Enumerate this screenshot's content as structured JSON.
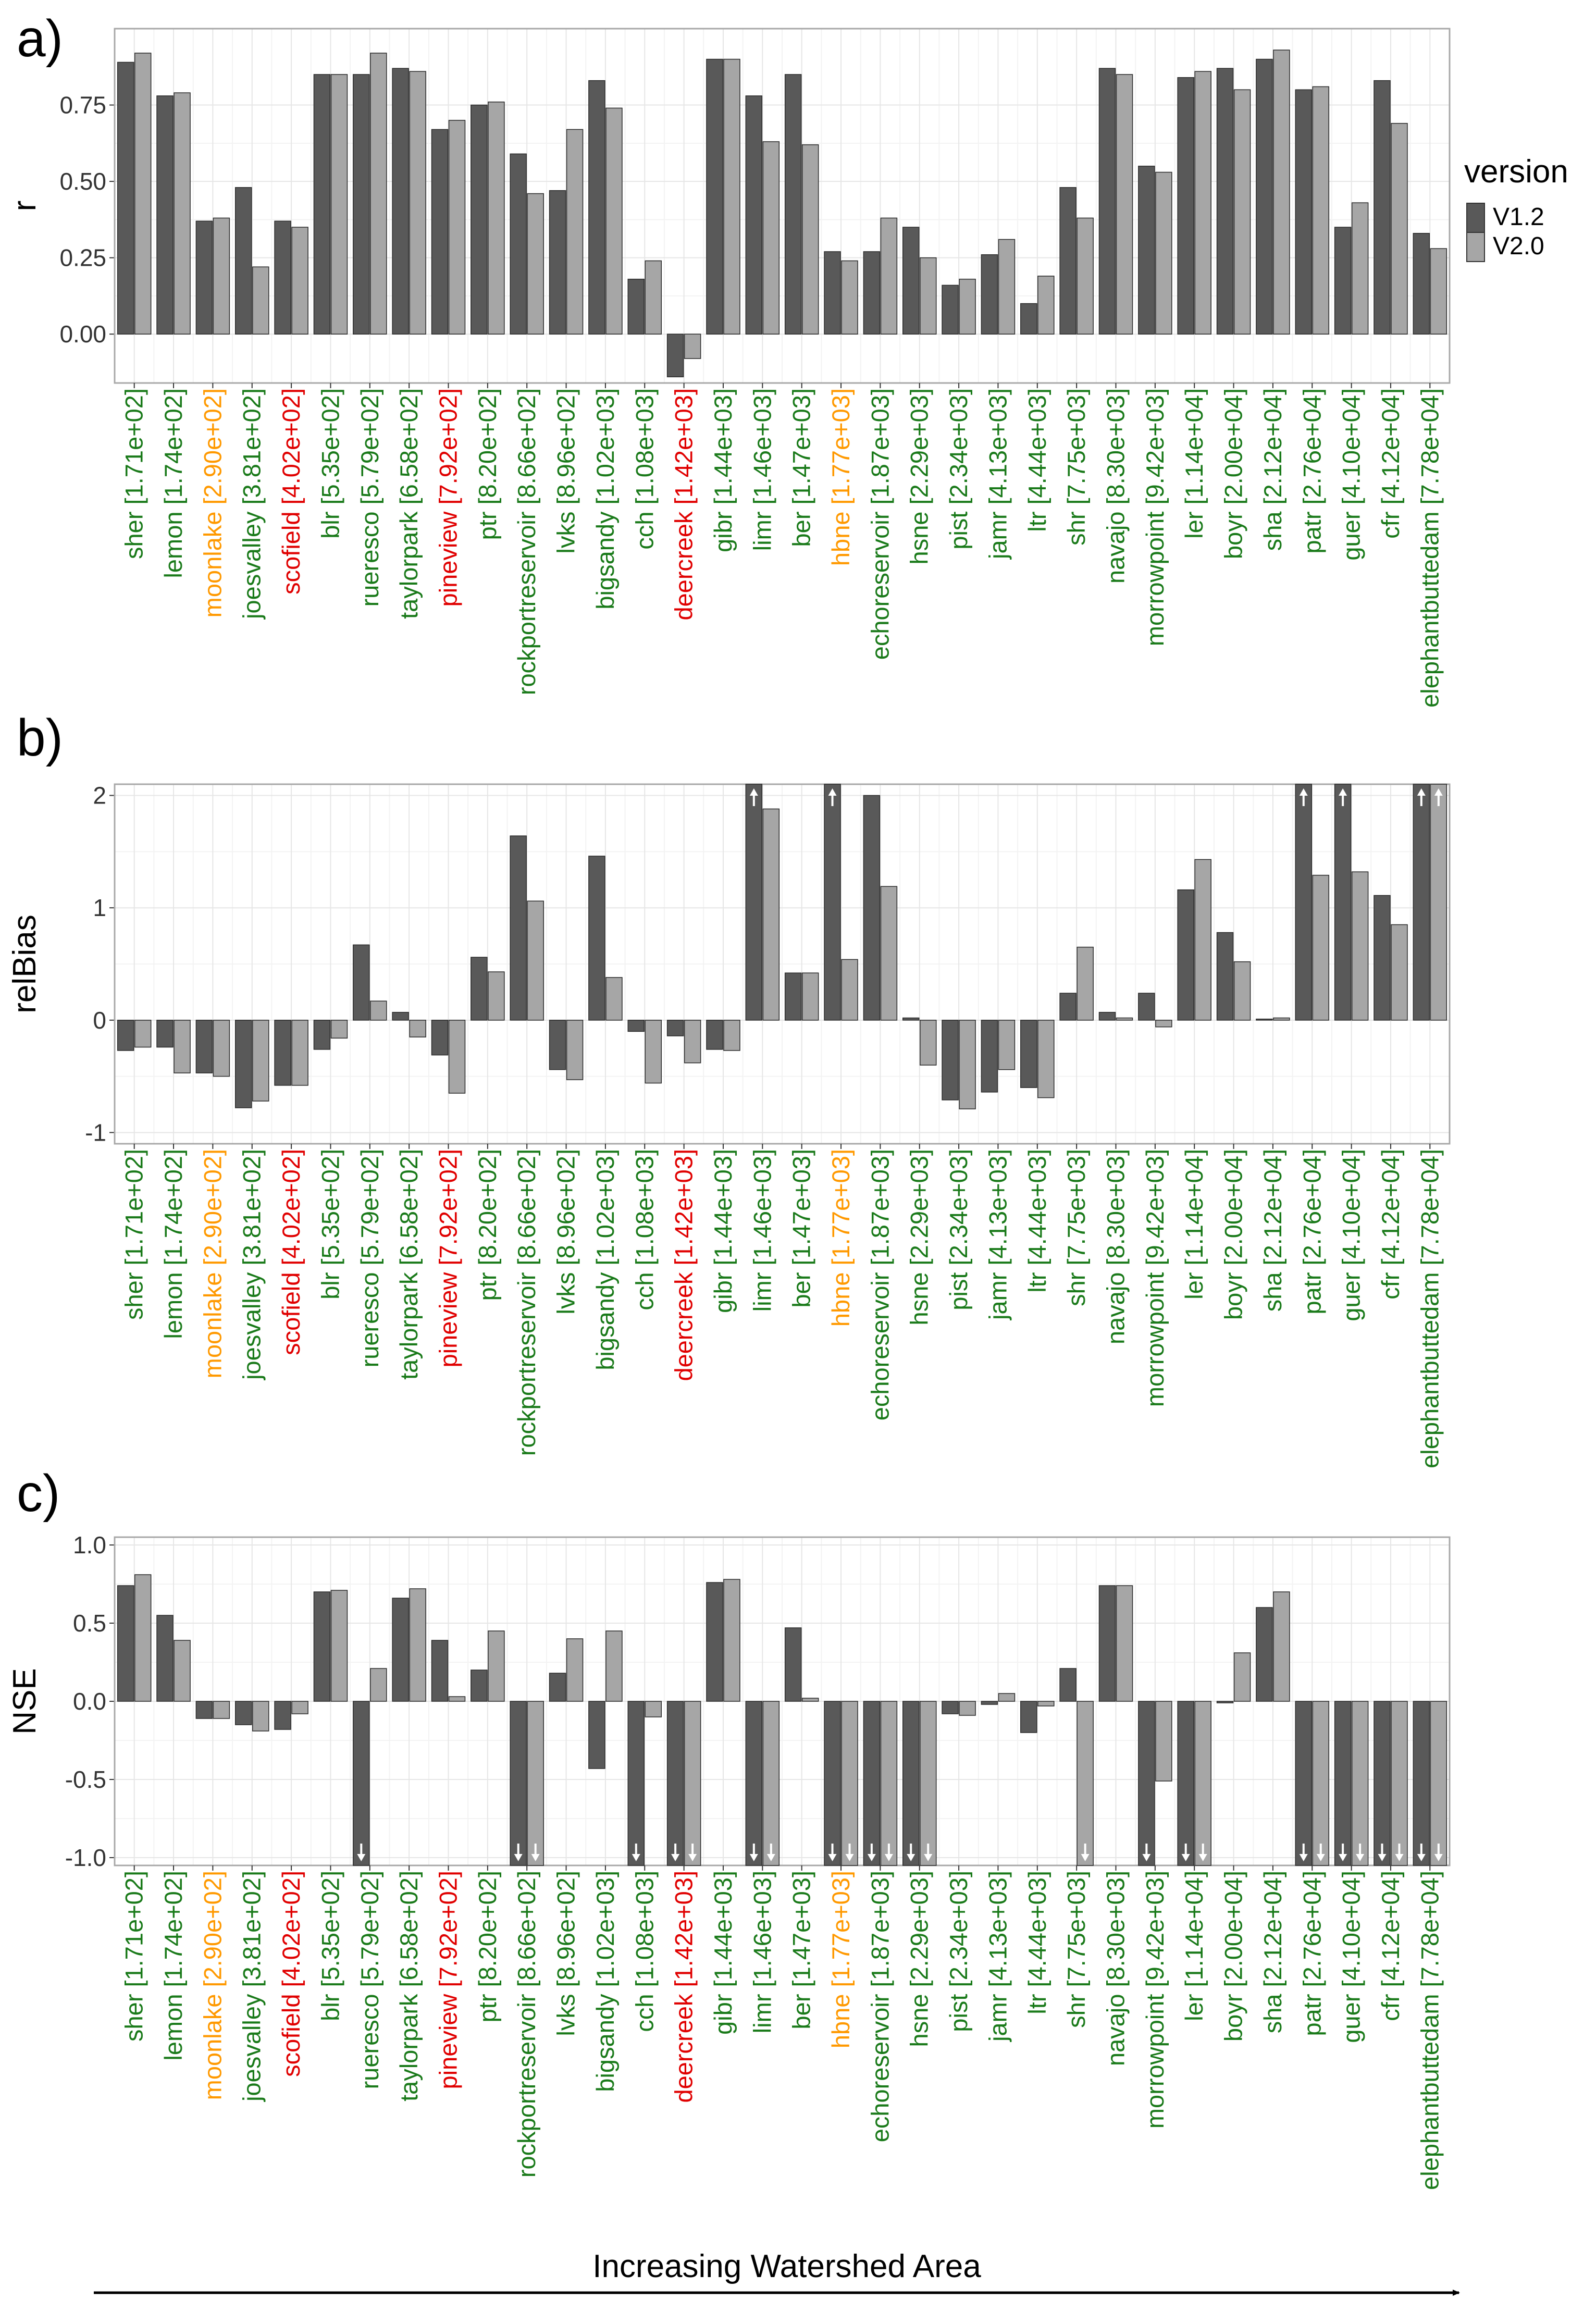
{
  "colors": {
    "v12": "#595959",
    "v20": "#a6a6a6",
    "good": "#1a7a1a",
    "medium": "#ff9900",
    "poor": "#e00000",
    "panel_border": "#a8a8a8",
    "grid_major": "#e6e6e6",
    "grid_minor": "#f3f3f3"
  },
  "legend": {
    "title": "version",
    "items": [
      "V1.2",
      "V2.0"
    ]
  },
  "footer": {
    "label": "Increasing Watershed Area"
  },
  "sites": [
    {
      "name": "sher",
      "area": "[1.71e+02]",
      "class": "good"
    },
    {
      "name": "lemon",
      "area": "[1.74e+02]",
      "class": "good"
    },
    {
      "name": "moonlake",
      "area": "[2.90e+02]",
      "class": "medium"
    },
    {
      "name": "joesvalley",
      "area": "[3.81e+02]",
      "class": "good"
    },
    {
      "name": "scofield",
      "area": "[4.02e+02]",
      "class": "poor"
    },
    {
      "name": "blr",
      "area": "[5.35e+02]",
      "class": "good"
    },
    {
      "name": "rueresco",
      "area": "[5.79e+02]",
      "class": "good"
    },
    {
      "name": "taylorpark",
      "area": "[6.58e+02]",
      "class": "good"
    },
    {
      "name": "pineview",
      "area": "[7.92e+02]",
      "class": "poor"
    },
    {
      "name": "ptr",
      "area": "[8.20e+02]",
      "class": "good"
    },
    {
      "name": "rockportreservoir",
      "area": "[8.66e+02]",
      "class": "good"
    },
    {
      "name": "lvks",
      "area": "[8.96e+02]",
      "class": "good"
    },
    {
      "name": "bigsandy",
      "area": "[1.02e+03]",
      "class": "good"
    },
    {
      "name": "cch",
      "area": "[1.08e+03]",
      "class": "good"
    },
    {
      "name": "deercreek",
      "area": "[1.42e+03]",
      "class": "poor"
    },
    {
      "name": "gibr",
      "area": "[1.44e+03]",
      "class": "good"
    },
    {
      "name": "limr",
      "area": "[1.46e+03]",
      "class": "good"
    },
    {
      "name": "ber",
      "area": "[1.47e+03]",
      "class": "good"
    },
    {
      "name": "hbne",
      "area": "[1.77e+03]",
      "class": "medium"
    },
    {
      "name": "echoreservoir",
      "area": "[1.87e+03]",
      "class": "good"
    },
    {
      "name": "hsne",
      "area": "[2.29e+03]",
      "class": "good"
    },
    {
      "name": "pist",
      "area": "[2.34e+03]",
      "class": "good"
    },
    {
      "name": "jamr",
      "area": "[4.13e+03]",
      "class": "good"
    },
    {
      "name": "ltr",
      "area": "[4.44e+03]",
      "class": "good"
    },
    {
      "name": "shr",
      "area": "[7.75e+03]",
      "class": "good"
    },
    {
      "name": "navajo",
      "area": "[8.30e+03]",
      "class": "good"
    },
    {
      "name": "morrowpoint",
      "area": "[9.42e+03]",
      "class": "good"
    },
    {
      "name": "ler",
      "area": "[1.14e+04]",
      "class": "good"
    },
    {
      "name": "boyr",
      "area": "[2.00e+04]",
      "class": "good"
    },
    {
      "name": "sha",
      "area": "[2.12e+04]",
      "class": "good"
    },
    {
      "name": "patr",
      "area": "[2.76e+04]",
      "class": "good"
    },
    {
      "name": "guer",
      "area": "[4.10e+04]",
      "class": "good"
    },
    {
      "name": "cfr",
      "area": "[4.12e+04]",
      "class": "good"
    },
    {
      "name": "elephantbuttedam",
      "area": "[7.78e+04]",
      "class": "good"
    }
  ],
  "chart_data": [
    {
      "panel": "a)",
      "type": "bar",
      "ylabel": "r",
      "ylim": [
        -0.16,
        1.0
      ],
      "yticks": [
        0,
        0.25,
        0.5,
        0.75
      ],
      "ytick_labels": [
        "0.00",
        "0.25",
        "0.50",
        "0.75"
      ],
      "series": [
        {
          "name": "V1.2",
          "values": [
            0.89,
            0.78,
            0.37,
            0.48,
            0.37,
            0.85,
            0.85,
            0.87,
            0.67,
            0.75,
            0.59,
            0.47,
            0.83,
            0.18,
            -0.14,
            0.9,
            0.78,
            0.85,
            0.27,
            0.27,
            0.35,
            0.16,
            0.26,
            0.1,
            0.48,
            0.87,
            0.55,
            0.84,
            0.87,
            0.9,
            0.8,
            0.35,
            0.83,
            0.33
          ],
          "capped": []
        },
        {
          "name": "V2.0",
          "values": [
            0.92,
            0.79,
            0.38,
            0.22,
            0.35,
            0.85,
            0.92,
            0.86,
            0.7,
            0.76,
            0.46,
            0.67,
            0.74,
            0.24,
            -0.08,
            0.9,
            0.63,
            0.62,
            0.24,
            0.38,
            0.25,
            0.18,
            0.31,
            0.19,
            0.38,
            0.85,
            0.53,
            0.86,
            0.8,
            0.93,
            0.81,
            0.43,
            0.69,
            0.28
          ],
          "capped": []
        }
      ]
    },
    {
      "panel": "b)",
      "type": "bar",
      "ylabel": "relBias",
      "ylim": [
        -1.1,
        2.1
      ],
      "yticks": [
        -1,
        0,
        1,
        2
      ],
      "ytick_labels": [
        "-1",
        "0",
        "1",
        "2"
      ],
      "series": [
        {
          "name": "V1.2",
          "values": [
            -0.27,
            -0.24,
            -0.47,
            -0.78,
            -0.58,
            -0.26,
            0.67,
            0.07,
            -0.31,
            0.56,
            1.64,
            -0.44,
            1.46,
            -0.1,
            -0.14,
            -0.26,
            2.1,
            0.42,
            2.1,
            2.0,
            0.02,
            -0.71,
            -0.64,
            -0.6,
            0.24,
            0.07,
            0.24,
            1.16,
            0.78,
            0.01,
            2.1,
            2.1,
            1.11,
            2.1
          ],
          "capped": [
            16,
            18,
            30,
            31,
            33
          ]
        },
        {
          "name": "V2.0",
          "values": [
            -0.24,
            -0.47,
            -0.5,
            -0.72,
            -0.58,
            -0.16,
            0.17,
            -0.15,
            -0.65,
            0.43,
            1.06,
            -0.53,
            0.38,
            -0.56,
            -0.38,
            -0.27,
            1.88,
            0.42,
            0.54,
            1.19,
            -0.4,
            -0.79,
            -0.44,
            -0.69,
            0.65,
            0.02,
            -0.06,
            1.43,
            0.52,
            0.02,
            1.29,
            1.32,
            0.85,
            2.1
          ],
          "capped": [
            33
          ]
        }
      ]
    },
    {
      "panel": "c)",
      "type": "bar",
      "ylabel": "NSE",
      "ylim": [
        -1.05,
        1.05
      ],
      "yticks": [
        -1.0,
        -0.5,
        0.0,
        0.5,
        1.0
      ],
      "ytick_labels": [
        "-1.0",
        "-0.5",
        "0.0",
        "0.5",
        "1.0"
      ],
      "series": [
        {
          "name": "V1.2",
          "values": [
            0.74,
            0.55,
            -0.11,
            -0.15,
            -0.18,
            0.7,
            -1.05,
            0.66,
            0.39,
            0.2,
            -1.05,
            0.18,
            -0.43,
            -1.05,
            -1.05,
            0.76,
            -1.05,
            0.47,
            -1.05,
            -1.05,
            -1.05,
            -0.08,
            -0.02,
            -0.2,
            0.21,
            0.74,
            -1.05,
            -1.05,
            -0.01,
            0.6,
            -1.05,
            -1.05,
            -1.05,
            -1.05
          ],
          "capped": [
            6,
            10,
            13,
            14,
            16,
            18,
            19,
            20,
            26,
            27,
            30,
            31,
            32,
            33
          ]
        },
        {
          "name": "V2.0",
          "values": [
            0.81,
            0.39,
            -0.11,
            -0.19,
            -0.08,
            0.71,
            0.21,
            0.72,
            0.03,
            0.45,
            -1.05,
            0.4,
            0.45,
            -0.1,
            -1.05,
            0.78,
            -1.05,
            0.02,
            -1.05,
            -1.05,
            -1.05,
            -0.09,
            0.05,
            -0.03,
            -1.05,
            0.74,
            -0.51,
            -1.05,
            0.31,
            0.7,
            -1.05,
            -1.05,
            -1.05,
            -1.05
          ],
          "capped": [
            10,
            14,
            16,
            18,
            19,
            20,
            24,
            27,
            30,
            31,
            32,
            33
          ]
        }
      ]
    }
  ]
}
